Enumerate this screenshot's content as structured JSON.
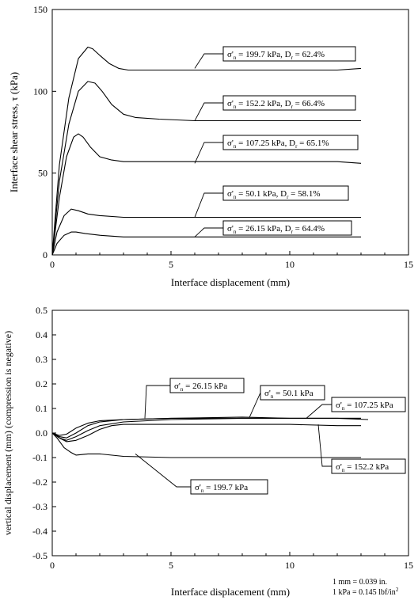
{
  "chart_data": [
    {
      "type": "line",
      "xlabel": "Interface displacement (mm)",
      "ylabel": "Interface shear stress, τ (kPa)",
      "xlim": [
        0,
        15
      ],
      "ylim": [
        0,
        150
      ],
      "xticks": [
        "0",
        "5",
        "10",
        "15"
      ],
      "yticks": [
        "0",
        "50",
        "100",
        "150"
      ],
      "grid": false,
      "series": [
        {
          "name": "σ'n = 199.7 kPa, Dr = 62.4%",
          "label_sigma": "σ'",
          "label_sub": "n",
          "label_mid": " = 199.7 kPa, D",
          "label_sub2": "r",
          "label_end": " = 62.4%",
          "x": [
            0,
            0.3,
            0.7,
            1.1,
            1.5,
            1.7,
            2.0,
            2.4,
            2.8,
            3.2,
            4,
            6,
            8,
            10,
            12,
            13
          ],
          "y": [
            0,
            55,
            96,
            120,
            127,
            126,
            122,
            117,
            114,
            113,
            113,
            113,
            113,
            113,
            113,
            114
          ]
        },
        {
          "name": "σ'n = 152.2 kPa, Dr = 66.4%",
          "label_sigma": "σ'",
          "label_sub": "n",
          "label_mid": " = 152.2 kPa, D",
          "label_sub2": "r",
          "label_end": " = 66.4%",
          "x": [
            0,
            0.3,
            0.7,
            1.1,
            1.5,
            1.8,
            2.1,
            2.5,
            3.0,
            3.5,
            4.5,
            6,
            8,
            10,
            12,
            13
          ],
          "y": [
            0,
            45,
            80,
            100,
            106,
            105,
            100,
            92,
            86,
            84,
            83,
            82,
            82,
            82,
            82,
            82
          ]
        },
        {
          "name": "σ'n = 107.25 kPa, Dr = 65.1%",
          "label_sigma": "σ'",
          "label_sub": "n",
          "label_mid": " = 107.25 kPa, D",
          "label_sub2": "r",
          "label_end": " = 65.1%",
          "x": [
            0,
            0.3,
            0.6,
            0.9,
            1.1,
            1.3,
            1.6,
            2.0,
            2.5,
            3.0,
            4,
            6,
            8,
            10,
            12,
            13
          ],
          "y": [
            0,
            35,
            60,
            72,
            74,
            72,
            66,
            60,
            58,
            57,
            57,
            57,
            57,
            57,
            57,
            56
          ]
        },
        {
          "name": "σ'n = 50.1 kPa, Dr = 58.1%",
          "label_sigma": "σ'",
          "label_sub": "n",
          "label_mid": " = 50.1 kPa, D",
          "label_sub2": "r",
          "label_end": " = 58.1%",
          "x": [
            0,
            0.2,
            0.5,
            0.8,
            1.1,
            1.5,
            2.0,
            3.0,
            5,
            8,
            10,
            12,
            13
          ],
          "y": [
            0,
            14,
            24,
            28,
            27,
            25,
            24,
            23,
            23,
            23,
            23,
            23,
            23
          ]
        },
        {
          "name": "σ'n = 26.15 kPa, Dr = 64.4%",
          "label_sigma": "σ'",
          "label_sub": "n",
          "label_mid": " = 26.15 kPa, D",
          "label_sub2": "r",
          "label_end": " = 64.4%",
          "x": [
            0,
            0.2,
            0.5,
            0.8,
            1.0,
            1.4,
            2.0,
            3.0,
            5,
            8,
            10,
            12,
            13
          ],
          "y": [
            0,
            7,
            12,
            14,
            14,
            13,
            12,
            11,
            11,
            11,
            11,
            11,
            11
          ]
        }
      ]
    },
    {
      "type": "line",
      "xlabel": "Interface displacement (mm)",
      "ylabel": "vertical displacement (mm) (compression is negative)",
      "xlim": [
        0,
        15
      ],
      "ylim": [
        -0.5,
        0.5
      ],
      "xticks": [
        "0",
        "5",
        "10",
        "15"
      ],
      "yticks": [
        "0.5",
        "0.4",
        "0.3",
        "0.2",
        "0.1",
        "0.0",
        "-0.1",
        "-0.2",
        "-0.3",
        "-0.4",
        "-0.5"
      ],
      "grid": false,
      "series": [
        {
          "name": "σ'n = 26.15 kPa",
          "label_sigma": "σ'",
          "label_sub": "n",
          "label_mid": " = 26.15 kPa",
          "x": [
            0,
            0.3,
            0.6,
            1.0,
            1.5,
            2.0,
            3.0,
            5,
            8,
            10,
            12,
            13
          ],
          "y": [
            0,
            -0.01,
            -0.005,
            0.02,
            0.04,
            0.05,
            0.055,
            0.06,
            0.06,
            0.06,
            0.06,
            0.06
          ]
        },
        {
          "name": "σ'n = 50.1 kPa",
          "label_sigma": "σ'",
          "label_sub": "n",
          "label_mid": " = 50.1 kPa",
          "x": [
            0,
            0.3,
            0.6,
            1.0,
            1.5,
            2.0,
            3.0,
            5,
            8,
            10,
            12,
            13
          ],
          "y": [
            0,
            -0.015,
            -0.02,
            0.0,
            0.03,
            0.045,
            0.055,
            0.06,
            0.065,
            0.06,
            0.06,
            0.06
          ]
        },
        {
          "name": "σ'n = 107.25 kPa",
          "label_sigma": "σ'",
          "label_sub": "n",
          "label_mid": " = 107.25 kPa",
          "x": [
            0,
            0.3,
            0.6,
            1.0,
            1.5,
            2.0,
            3.0,
            5,
            8,
            10,
            12,
            13.3
          ],
          "y": [
            0,
            -0.02,
            -0.03,
            -0.015,
            0.01,
            0.03,
            0.045,
            0.055,
            0.06,
            0.06,
            0.06,
            0.055
          ]
        },
        {
          "name": "σ'n = 152.2 kPa",
          "label_sigma": "σ'",
          "label_sub": "n",
          "label_mid": " = 152.2 kPa",
          "x": [
            0,
            0.3,
            0.6,
            1.0,
            1.5,
            2.0,
            2.5,
            3.0,
            5,
            8,
            10,
            12,
            13
          ],
          "y": [
            0,
            -0.02,
            -0.035,
            -0.03,
            -0.01,
            0.015,
            0.03,
            0.035,
            0.035,
            0.035,
            0.035,
            0.03,
            0.03
          ]
        },
        {
          "name": "σ'n = 199.7 kPa",
          "label_sigma": "σ'",
          "label_sub": "n",
          "label_mid": " = 199.7 kPa",
          "x": [
            0,
            0.2,
            0.5,
            0.8,
            1.0,
            1.5,
            2.0,
            3.0,
            5,
            8,
            10,
            12,
            13
          ],
          "y": [
            0,
            -0.02,
            -0.06,
            -0.08,
            -0.09,
            -0.085,
            -0.085,
            -0.095,
            -0.1,
            -0.1,
            -0.1,
            -0.1,
            -0.1
          ]
        }
      ]
    }
  ],
  "note": {
    "line1": "1 mm = 0.039 in.",
    "line2_main": "1 kPa = 0.145 lbf/in",
    "line2_sup": "2"
  }
}
